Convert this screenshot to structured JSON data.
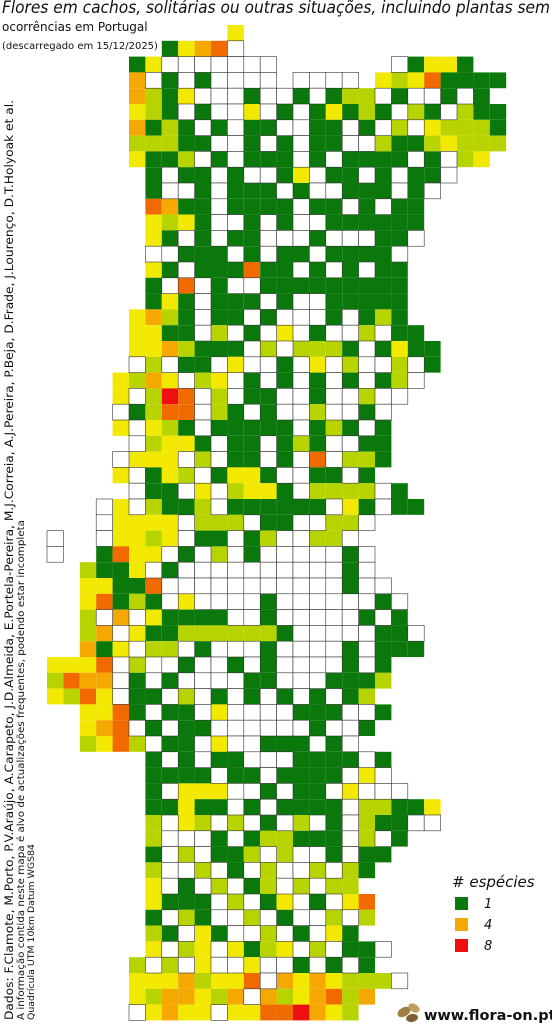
{
  "header": {
    "title": "Flores em cachos, solitárias ou outras situações, incluindo plantas sem",
    "subtitle": "ocorrências em Portugal",
    "download": "(descarregado em 15/12/2025)"
  },
  "credits": {
    "authors": "Dados: F.Clamote, M.Porto, P.V.Araújo, A.Carapeto, J.D.Almeida, E.Portela-Pereira, M.J.Correia, A.J.Pereira, P.Beja, D.Frade, J.Lourenço, D.T.Holyoak et al.",
    "notice": "A informação contida neste mapa é alvo de actualizações frequentes, podendo estar incompleta",
    "grid_info": "Quadrícula UTM 10km Datum WGS84"
  },
  "legend": {
    "title": "# espécies",
    "items": [
      {
        "value": 1,
        "color": "#0a780a"
      },
      {
        "value": 4,
        "color": "#f5a800"
      },
      {
        "value": 8,
        "color": "#ee1010"
      }
    ]
  },
  "logo": "www.flora-on.pt",
  "map": {
    "cell_colors": [
      "#ffffff",
      "#0a780a",
      "#b8d400",
      "#f3e800",
      "#f5a800",
      "#f28a00",
      "#f06a00",
      "#ee4000",
      "#ee1010"
    ],
    "grid": [
      [
        null,
        null,
        null,
        null,
        null,
        null,
        null,
        null,
        null,
        null,
        null,
        3
      ],
      [
        null,
        null,
        null,
        null,
        null,
        null,
        null,
        1,
        3,
        4,
        6,
        0
      ],
      [
        null,
        null,
        null,
        null,
        null,
        1,
        3,
        0,
        0,
        0,
        0,
        0,
        0,
        0,
        null,
        null,
        null,
        null,
        null,
        null,
        null,
        0,
        1,
        3,
        3,
        1
      ],
      [
        null,
        null,
        null,
        null,
        null,
        4,
        0,
        1,
        0,
        1,
        0,
        0,
        0,
        0,
        null,
        0,
        0,
        0,
        0,
        null,
        3,
        2,
        3,
        6,
        1,
        1,
        1,
        1
      ],
      [
        null,
        null,
        null,
        null,
        null,
        4,
        2,
        1,
        3,
        0,
        0,
        0,
        1,
        0,
        0,
        1,
        0,
        1,
        2,
        2,
        0,
        1,
        0,
        0,
        1,
        0,
        1
      ],
      [
        null,
        null,
        null,
        null,
        null,
        3,
        2,
        1,
        0,
        1,
        0,
        0,
        3,
        0,
        1,
        0,
        1,
        3,
        1,
        2,
        1,
        0,
        2,
        1,
        0,
        2,
        1,
        1
      ],
      [
        null,
        null,
        null,
        null,
        null,
        4,
        1,
        2,
        1,
        0,
        1,
        0,
        1,
        1,
        0,
        0,
        1,
        1,
        0,
        1,
        0,
        2,
        0,
        3,
        2,
        2,
        2,
        1
      ],
      [
        null,
        null,
        null,
        null,
        null,
        2,
        2,
        2,
        1,
        1,
        0,
        0,
        1,
        0,
        1,
        0,
        1,
        1,
        0,
        0,
        2,
        1,
        1,
        2,
        3,
        2,
        2,
        2
      ],
      [
        null,
        null,
        null,
        null,
        null,
        3,
        1,
        1,
        2,
        0,
        1,
        0,
        1,
        1,
        1,
        0,
        1,
        0,
        1,
        1,
        1,
        1,
        0,
        1,
        0,
        2,
        3
      ],
      [
        null,
        null,
        null,
        null,
        null,
        null,
        1,
        0,
        1,
        1,
        0,
        1,
        0,
        0,
        1,
        3,
        0,
        1,
        1,
        0,
        1,
        0,
        1,
        1,
        0
      ],
      [
        null,
        null,
        null,
        null,
        null,
        null,
        1,
        0,
        0,
        1,
        0,
        1,
        1,
        1,
        0,
        1,
        0,
        0,
        1,
        1,
        1,
        0,
        1,
        0
      ],
      [
        null,
        null,
        null,
        null,
        null,
        null,
        6,
        4,
        1,
        1,
        0,
        1,
        1,
        1,
        1,
        0,
        1,
        1,
        0,
        1,
        0,
        1,
        1
      ],
      [
        null,
        null,
        null,
        null,
        null,
        null,
        3,
        2,
        3,
        1,
        0,
        0,
        1,
        0,
        1,
        0,
        0,
        1,
        1,
        1,
        1,
        1,
        1
      ],
      [
        null,
        null,
        null,
        null,
        null,
        null,
        3,
        1,
        0,
        1,
        0,
        1,
        1,
        0,
        0,
        0,
        1,
        0,
        0,
        0,
        1,
        1,
        0
      ],
      [
        null,
        null,
        null,
        null,
        null,
        null,
        0,
        0,
        1,
        1,
        1,
        0,
        1,
        0,
        1,
        1,
        0,
        1,
        1,
        1,
        1,
        0
      ],
      [
        null,
        null,
        null,
        null,
        null,
        null,
        3,
        1,
        0,
        1,
        1,
        1,
        6,
        1,
        1,
        0,
        1,
        0,
        1,
        0,
        1,
        1
      ],
      [
        null,
        null,
        null,
        null,
        null,
        null,
        1,
        0,
        6,
        0,
        1,
        0,
        0,
        1,
        1,
        1,
        1,
        1,
        1,
        1,
        1,
        1
      ],
      [
        null,
        null,
        null,
        null,
        null,
        null,
        1,
        3,
        1,
        0,
        1,
        1,
        1,
        0,
        1,
        0,
        0,
        1,
        1,
        1,
        1,
        1
      ],
      [
        null,
        null,
        null,
        null,
        null,
        3,
        4,
        2,
        1,
        0,
        1,
        1,
        0,
        1,
        0,
        0,
        0,
        1,
        0,
        1,
        2,
        1
      ],
      [
        null,
        null,
        null,
        null,
        null,
        3,
        3,
        1,
        1,
        0,
        2,
        0,
        1,
        0,
        3,
        0,
        1,
        0,
        0,
        2,
        0,
        1,
        1
      ],
      [
        null,
        null,
        null,
        null,
        null,
        3,
        3,
        4,
        2,
        1,
        1,
        1,
        0,
        2,
        0,
        2,
        2,
        2,
        1,
        0,
        1,
        3,
        1,
        1
      ],
      [
        null,
        null,
        null,
        null,
        null,
        0,
        2,
        0,
        1,
        1,
        0,
        3,
        0,
        0,
        1,
        0,
        3,
        0,
        2,
        0,
        0,
        2,
        0,
        1
      ],
      [
        null,
        null,
        null,
        null,
        3,
        2,
        4,
        3,
        0,
        2,
        3,
        0,
        1,
        0,
        1,
        0,
        1,
        0,
        1,
        0,
        1,
        2,
        0
      ],
      [
        null,
        null,
        null,
        null,
        3,
        0,
        2,
        8,
        6,
        0,
        2,
        0,
        1,
        1,
        0,
        0,
        1,
        0,
        0,
        2,
        0,
        0
      ],
      [
        null,
        null,
        null,
        null,
        0,
        1,
        2,
        6,
        6,
        0,
        2,
        1,
        0,
        1,
        0,
        0,
        2,
        0,
        0,
        1,
        0
      ],
      [
        null,
        null,
        null,
        null,
        3,
        0,
        3,
        2,
        1,
        0,
        1,
        1,
        1,
        1,
        1,
        0,
        1,
        2,
        1,
        0,
        1
      ],
      [
        null,
        null,
        null,
        null,
        null,
        0,
        2,
        3,
        3,
        1,
        0,
        1,
        1,
        0,
        1,
        2,
        1,
        0,
        0,
        1,
        1
      ],
      [
        null,
        null,
        null,
        null,
        0,
        3,
        3,
        3,
        0,
        2,
        0,
        1,
        1,
        0,
        1,
        0,
        6,
        0,
        2,
        2,
        1
      ],
      [
        null,
        null,
        null,
        null,
        3,
        0,
        1,
        3,
        2,
        0,
        1,
        3,
        3,
        1,
        0,
        0,
        1,
        1,
        0,
        1
      ],
      [
        null,
        null,
        null,
        null,
        null,
        0,
        1,
        1,
        0,
        3,
        0,
        2,
        3,
        3,
        1,
        0,
        2,
        2,
        2,
        2,
        0,
        1
      ],
      [
        null,
        null,
        null,
        0,
        3,
        0,
        2,
        1,
        1,
        2,
        0,
        1,
        1,
        1,
        1,
        1,
        1,
        0,
        3,
        1,
        0,
        1,
        1
      ],
      [
        null,
        null,
        null,
        0,
        3,
        3,
        3,
        3,
        0,
        2,
        2,
        2,
        0,
        1,
        1,
        0,
        0,
        2,
        2,
        0
      ],
      [
        0,
        null,
        null,
        0,
        3,
        3,
        2,
        3,
        0,
        1,
        1,
        0,
        1,
        2,
        0,
        0,
        2,
        2,
        0
      ],
      [
        0,
        null,
        null,
        1,
        6,
        3,
        3,
        0,
        1,
        0,
        2,
        0,
        1,
        0,
        0,
        0,
        0,
        0,
        1,
        0
      ],
      [
        null,
        null,
        2,
        1,
        1,
        3,
        0,
        1,
        0,
        0,
        0,
        0,
        0,
        0,
        0,
        0,
        0,
        0,
        1,
        0
      ],
      [
        null,
        null,
        3,
        3,
        1,
        1,
        6,
        0,
        0,
        0,
        0,
        0,
        0,
        0,
        0,
        0,
        0,
        0,
        1,
        0,
        0
      ],
      [
        null,
        null,
        3,
        6,
        1,
        2,
        1,
        0,
        3,
        0,
        0,
        0,
        0,
        1,
        0,
        0,
        0,
        0,
        0,
        0,
        1,
        0
      ],
      [
        null,
        null,
        2,
        0,
        4,
        0,
        3,
        1,
        1,
        1,
        1,
        0,
        0,
        1,
        0,
        0,
        0,
        0,
        0,
        1,
        0,
        1
      ],
      [
        null,
        null,
        2,
        4,
        0,
        3,
        1,
        1,
        2,
        2,
        2,
        2,
        2,
        2,
        1,
        0,
        0,
        0,
        0,
        0,
        1,
        1,
        0
      ],
      [
        null,
        null,
        4,
        1,
        3,
        0,
        2,
        2,
        0,
        1,
        0,
        0,
        0,
        1,
        0,
        0,
        0,
        0,
        1,
        0,
        1,
        1,
        1
      ],
      [
        3,
        3,
        3,
        6,
        0,
        2,
        0,
        0,
        1,
        0,
        0,
        1,
        0,
        1,
        0,
        0,
        0,
        0,
        1,
        0,
        1
      ],
      [
        2,
        6,
        4,
        4,
        0,
        1,
        0,
        1,
        0,
        0,
        0,
        0,
        1,
        1,
        0,
        0,
        0,
        1,
        1,
        1,
        2
      ],
      [
        3,
        2,
        6,
        3,
        0,
        1,
        1,
        0,
        2,
        0,
        1,
        0,
        1,
        0,
        1,
        0,
        1,
        0,
        1,
        2
      ],
      [
        null,
        null,
        3,
        3,
        6,
        1,
        0,
        1,
        1,
        0,
        3,
        0,
        0,
        0,
        0,
        1,
        1,
        1,
        0,
        0,
        1
      ],
      [
        null,
        null,
        3,
        4,
        6,
        0,
        1,
        0,
        1,
        1,
        0,
        0,
        0,
        0,
        0,
        0,
        1,
        0,
        0,
        1
      ],
      [
        null,
        null,
        2,
        3,
        6,
        2,
        0,
        1,
        1,
        0,
        3,
        0,
        0,
        1,
        1,
        1,
        0,
        1,
        0
      ],
      [
        null,
        null,
        null,
        null,
        null,
        null,
        1,
        0,
        1,
        0,
        1,
        1,
        0,
        0,
        0,
        1,
        1,
        1,
        1,
        0,
        1
      ],
      [
        null,
        null,
        null,
        null,
        null,
        null,
        1,
        1,
        1,
        1,
        0,
        1,
        1,
        0,
        1,
        1,
        1,
        1,
        0,
        3,
        0
      ],
      [
        null,
        null,
        null,
        null,
        null,
        null,
        1,
        0,
        3,
        3,
        3,
        0,
        0,
        1,
        0,
        1,
        1,
        0,
        3,
        0,
        0,
        0
      ],
      [
        null,
        null,
        null,
        null,
        null,
        null,
        1,
        1,
        3,
        1,
        1,
        0,
        1,
        0,
        1,
        1,
        1,
        1,
        0,
        2,
        2,
        1,
        1,
        3
      ],
      [
        null,
        null,
        null,
        null,
        null,
        null,
        2,
        0,
        3,
        2,
        0,
        2,
        0,
        1,
        0,
        2,
        0,
        1,
        0,
        2,
        1,
        1,
        0,
        0
      ],
      [
        null,
        null,
        null,
        null,
        null,
        null,
        2,
        0,
        0,
        0,
        1,
        0,
        1,
        2,
        2,
        1,
        1,
        1,
        0,
        2,
        0,
        1
      ],
      [
        null,
        null,
        null,
        null,
        null,
        null,
        1,
        0,
        2,
        0,
        1,
        1,
        2,
        0,
        2,
        0,
        0,
        1,
        0,
        1,
        1
      ],
      [
        null,
        null,
        null,
        null,
        null,
        null,
        2,
        0,
        0,
        2,
        0,
        1,
        0,
        2,
        0,
        0,
        2,
        0,
        2,
        1
      ],
      [
        null,
        null,
        null,
        null,
        null,
        null,
        3,
        0,
        1,
        0,
        2,
        0,
        1,
        2,
        0,
        2,
        0,
        2,
        2
      ],
      [
        null,
        null,
        null,
        null,
        null,
        null,
        3,
        1,
        1,
        1,
        0,
        2,
        0,
        1,
        3,
        0,
        1,
        0,
        3,
        6
      ],
      [
        null,
        null,
        null,
        null,
        null,
        null,
        1,
        0,
        2,
        1,
        0,
        0,
        2,
        0,
        1,
        0,
        0,
        2,
        0,
        2
      ],
      [
        null,
        null,
        null,
        null,
        null,
        null,
        2,
        1,
        0,
        3,
        1,
        0,
        0,
        2,
        0,
        1,
        0,
        3,
        1
      ],
      [
        null,
        null,
        null,
        null,
        null,
        null,
        3,
        0,
        2,
        3,
        0,
        3,
        1,
        2,
        3,
        0,
        2,
        0,
        1,
        1,
        0
      ],
      [
        null,
        null,
        null,
        null,
        null,
        2,
        0,
        2,
        0,
        3,
        0,
        0,
        3,
        0,
        0,
        1,
        0,
        1,
        0,
        1
      ],
      [
        null,
        null,
        null,
        null,
        null,
        3,
        3,
        3,
        4,
        2,
        3,
        3,
        6,
        0,
        4,
        3,
        4,
        3,
        2,
        2,
        2,
        0
      ],
      [
        null,
        null,
        null,
        null,
        null,
        3,
        2,
        4,
        4,
        3,
        2,
        4,
        0,
        4,
        2,
        3,
        4,
        6,
        2,
        4
      ],
      [
        null,
        null,
        null,
        null,
        null,
        0,
        3,
        4,
        3,
        3,
        0,
        3,
        3,
        6,
        6,
        8,
        4,
        3,
        2
      ]
    ]
  }
}
